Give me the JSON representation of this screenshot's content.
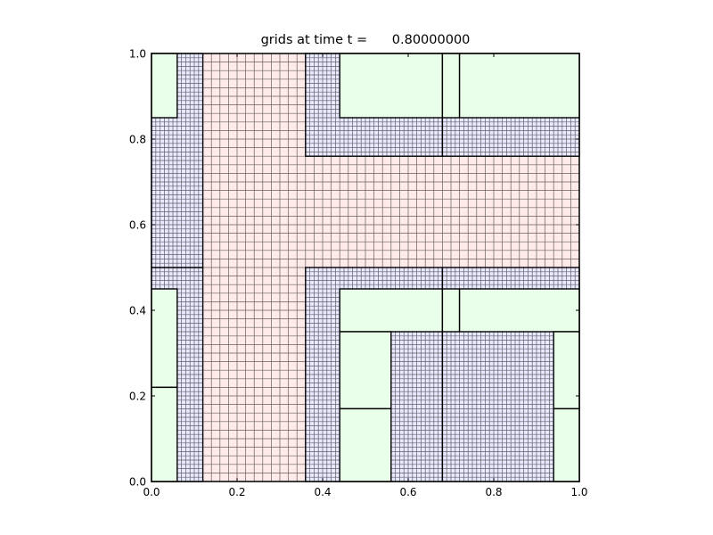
{
  "chart_data": {
    "type": "amr-grid-patches",
    "title": "grids at time t =      0.80000000",
    "xlim": [
      0,
      1
    ],
    "ylim": [
      0,
      1
    ],
    "xticks": [
      "0.0",
      "0.2",
      "0.4",
      "0.6",
      "0.8",
      "1.0"
    ],
    "yticks": [
      "0.0",
      "0.2",
      "0.4",
      "0.6",
      "0.8",
      "1.0"
    ],
    "grid": false,
    "level_colors": {
      "1": "#ffeaea",
      "2": "#e8e8ff",
      "3": "#eaffea"
    },
    "level_grid_spacing": {
      "1": 0.02,
      "2": 0.01,
      "3": null
    },
    "patches": [
      {
        "level": 1,
        "x": [
          0,
          1
        ],
        "y": [
          0,
          1
        ]
      },
      {
        "level": 2,
        "x": [
          0,
          0.12
        ],
        "y": [
          0,
          0.5
        ]
      },
      {
        "level": 2,
        "x": [
          0,
          0.12
        ],
        "y": [
          0.5,
          1
        ]
      },
      {
        "level": 2,
        "x": [
          0.36,
          0.68
        ],
        "y": [
          0.76,
          1
        ]
      },
      {
        "level": 2,
        "x": [
          0.68,
          1
        ],
        "y": [
          0.76,
          1
        ]
      },
      {
        "level": 2,
        "x": [
          0.36,
          0.68
        ],
        "y": [
          0,
          0.5
        ]
      },
      {
        "level": 2,
        "x": [
          0.68,
          1
        ],
        "y": [
          0,
          0.5
        ]
      },
      {
        "level": 3,
        "x": [
          0,
          0.06
        ],
        "y": [
          0.85,
          1
        ]
      },
      {
        "level": 3,
        "x": [
          0,
          0.06
        ],
        "y": [
          0.22,
          0.45
        ]
      },
      {
        "level": 3,
        "x": [
          0,
          0.06
        ],
        "y": [
          0,
          0.22
        ]
      },
      {
        "level": 3,
        "x": [
          0.44,
          0.68
        ],
        "y": [
          0.85,
          1
        ]
      },
      {
        "level": 3,
        "x": [
          0.68,
          0.72
        ],
        "y": [
          0.85,
          1
        ]
      },
      {
        "level": 3,
        "x": [
          0.72,
          1
        ],
        "y": [
          0.85,
          1
        ]
      },
      {
        "level": 3,
        "x": [
          0.44,
          0.68
        ],
        "y": [
          0.35,
          0.45
        ]
      },
      {
        "level": 3,
        "x": [
          0.68,
          0.72
        ],
        "y": [
          0.35,
          0.45
        ]
      },
      {
        "level": 3,
        "x": [
          0.72,
          1
        ],
        "y": [
          0.35,
          0.45
        ]
      },
      {
        "level": 3,
        "x": [
          0.44,
          0.56
        ],
        "y": [
          0.17,
          0.35
        ]
      },
      {
        "level": 3,
        "x": [
          0.44,
          0.56
        ],
        "y": [
          0,
          0.17
        ]
      },
      {
        "level": 3,
        "x": [
          0.94,
          1
        ],
        "y": [
          0.17,
          0.35
        ]
      },
      {
        "level": 3,
        "x": [
          0.94,
          1
        ],
        "y": [
          0,
          0.17
        ]
      }
    ]
  }
}
